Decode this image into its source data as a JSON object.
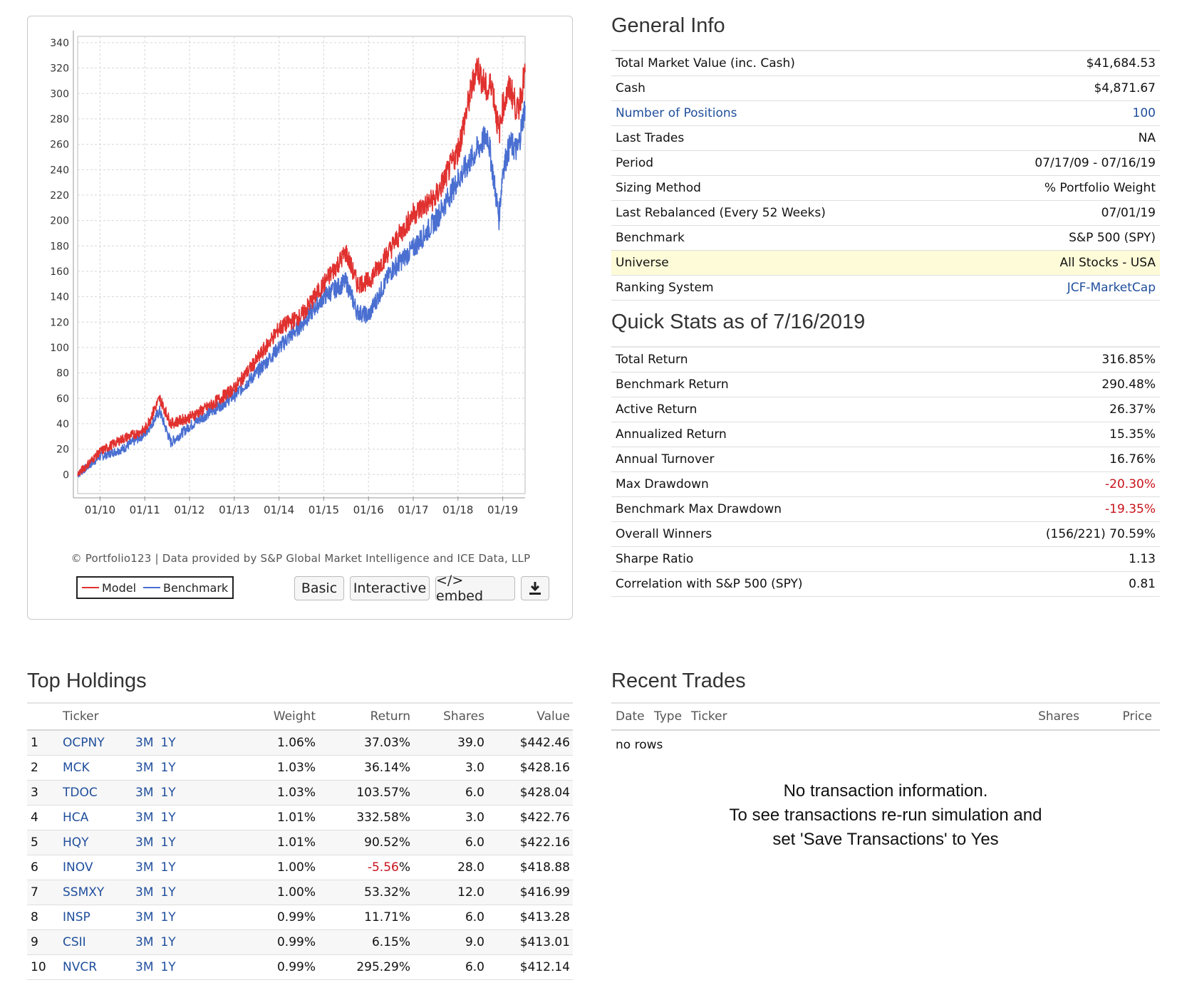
{
  "chart": {
    "copyright": "© Portfolio123 | Data provided by S&P Global Market Intelligence and ICE Data, LLP",
    "legend": {
      "model": "Model",
      "benchmark": "Benchmark"
    },
    "buttons": {
      "basic": "Basic",
      "interactive": "Interactive",
      "embed": "</> embed"
    },
    "icons": {
      "download": "download-icon"
    },
    "colors": {
      "model": "#e0312f",
      "benchmark": "#4a6fd1"
    }
  },
  "chart_data": {
    "type": "line",
    "x_ticks": [
      "01/10",
      "01/11",
      "01/12",
      "01/13",
      "01/14",
      "01/15",
      "01/16",
      "01/17",
      "01/18",
      "01/19"
    ],
    "y_ticks": [
      0,
      20,
      40,
      60,
      80,
      100,
      120,
      140,
      160,
      180,
      200,
      220,
      240,
      260,
      280,
      300,
      320,
      340
    ],
    "ylim": [
      -15,
      345
    ],
    "xlim": [
      "07/2009",
      "07/2019"
    ],
    "grid": true,
    "legend_position": "bottom-left",
    "series": [
      {
        "name": "Model",
        "x": [
          "07/09",
          "01/10",
          "07/10",
          "01/11",
          "05/11",
          "08/11",
          "01/12",
          "07/12",
          "01/13",
          "07/13",
          "01/14",
          "07/14",
          "01/15",
          "07/15",
          "10/15",
          "01/16",
          "07/16",
          "01/17",
          "07/17",
          "01/18",
          "06/18",
          "09/18",
          "10/18",
          "12/18",
          "01/19",
          "03/19",
          "05/19",
          "07/19"
        ],
        "values": [
          0,
          18,
          28,
          35,
          60,
          40,
          45,
          55,
          68,
          90,
          115,
          125,
          150,
          175,
          150,
          152,
          178,
          205,
          218,
          255,
          322,
          300,
          310,
          268,
          290,
          305,
          285,
          316.85
        ]
      },
      {
        "name": "Benchmark",
        "x": [
          "07/09",
          "01/10",
          "07/10",
          "01/11",
          "05/11",
          "08/11",
          "01/12",
          "07/12",
          "01/13",
          "07/13",
          "01/14",
          "07/14",
          "01/15",
          "07/15",
          "10/15",
          "01/16",
          "07/16",
          "01/17",
          "07/17",
          "01/18",
          "06/18",
          "09/18",
          "10/18",
          "12/18",
          "01/19",
          "03/19",
          "05/19",
          "07/19"
        ],
        "values": [
          0,
          14,
          20,
          32,
          50,
          25,
          38,
          50,
          62,
          80,
          100,
          118,
          140,
          152,
          128,
          125,
          160,
          178,
          200,
          232,
          255,
          268,
          245,
          202,
          240,
          260,
          255,
          290.48
        ]
      }
    ]
  },
  "general_info": {
    "title": "General Info",
    "rows": [
      {
        "label": "Total Market Value (inc. Cash)",
        "value": "$41,684.53"
      },
      {
        "label": "Cash",
        "value": "$4,871.67"
      },
      {
        "label": "Number of Positions",
        "value": "100"
      },
      {
        "label": "Last Trades",
        "value": "NA"
      },
      {
        "label": "Period",
        "value": "07/17/09 - 07/16/19"
      },
      {
        "label": "Sizing Method",
        "value": "% Portfolio Weight"
      },
      {
        "label": "Last Rebalanced (Every 52 Weeks)",
        "value": "07/01/19"
      },
      {
        "label": "Benchmark",
        "value": "S&P 500 (SPY)"
      },
      {
        "label": "Universe",
        "value": "All Stocks - USA"
      },
      {
        "label": "Ranking System",
        "value": "JCF-MarketCap"
      }
    ]
  },
  "quick_stats": {
    "title": "Quick Stats as of 7/16/2019",
    "rows": [
      {
        "label": "Total Return",
        "value": "316.85%"
      },
      {
        "label": "Benchmark Return",
        "value": "290.48%"
      },
      {
        "label": "Active Return",
        "value": "26.37%"
      },
      {
        "label": "Annualized Return",
        "value": "15.35%"
      },
      {
        "label": "Annual Turnover",
        "value": "16.76%"
      },
      {
        "label": "Max Drawdown",
        "value": "-20.30%"
      },
      {
        "label": "Benchmark Max Drawdown",
        "value": "-19.35%"
      },
      {
        "label": "Overall Winners",
        "value": "(156/221) 70.59%"
      },
      {
        "label": "Sharpe Ratio",
        "value": "1.13"
      },
      {
        "label": "Correlation with S&P 500 (SPY)",
        "value": "0.81"
      }
    ]
  },
  "top_holdings": {
    "title": "Top Holdings",
    "headers": {
      "ticker": "Ticker",
      "weight": "Weight",
      "return": "Return",
      "shares": "Shares",
      "value": "Value"
    },
    "period_links": [
      "3M",
      "1Y"
    ],
    "rows": [
      {
        "num": "1",
        "ticker": "OCPNY",
        "weight": "1.06%",
        "ret": "37.03%",
        "shares": "39.0",
        "value": "$442.46"
      },
      {
        "num": "2",
        "ticker": "MCK",
        "weight": "1.03%",
        "ret": "36.14%",
        "shares": "3.0",
        "value": "$428.16"
      },
      {
        "num": "3",
        "ticker": "TDOC",
        "weight": "1.03%",
        "ret": "103.57%",
        "shares": "6.0",
        "value": "$428.04"
      },
      {
        "num": "4",
        "ticker": "HCA",
        "weight": "1.01%",
        "ret": "332.58%",
        "shares": "3.0",
        "value": "$422.76"
      },
      {
        "num": "5",
        "ticker": "HQY",
        "weight": "1.01%",
        "ret": "90.52%",
        "shares": "6.0",
        "value": "$422.16"
      },
      {
        "num": "6",
        "ticker": "INOV",
        "weight": "1.00%",
        "ret": "-5.56",
        "ret_suffix": "%",
        "shares": "28.0",
        "value": "$418.88"
      },
      {
        "num": "7",
        "ticker": "SSMXY",
        "weight": "1.00%",
        "ret": "53.32%",
        "shares": "12.0",
        "value": "$416.99"
      },
      {
        "num": "8",
        "ticker": "INSP",
        "weight": "0.99%",
        "ret": "11.71%",
        "shares": "6.0",
        "value": "$413.28"
      },
      {
        "num": "9",
        "ticker": "CSII",
        "weight": "0.99%",
        "ret": "6.15%",
        "shares": "9.0",
        "value": "$413.01"
      },
      {
        "num": "10",
        "ticker": "NVCR",
        "weight": "0.99%",
        "ret": "295.29%",
        "shares": "6.0",
        "value": "$412.14"
      }
    ]
  },
  "recent_trades": {
    "title": "Recent Trades",
    "headers": {
      "date": "Date",
      "type": "Type",
      "ticker": "Ticker",
      "shares": "Shares",
      "price": "Price"
    },
    "empty": "no rows",
    "message": [
      "No transaction information.",
      "To see transactions re-run simulation and",
      "set 'Save Transactions' to Yes"
    ]
  }
}
